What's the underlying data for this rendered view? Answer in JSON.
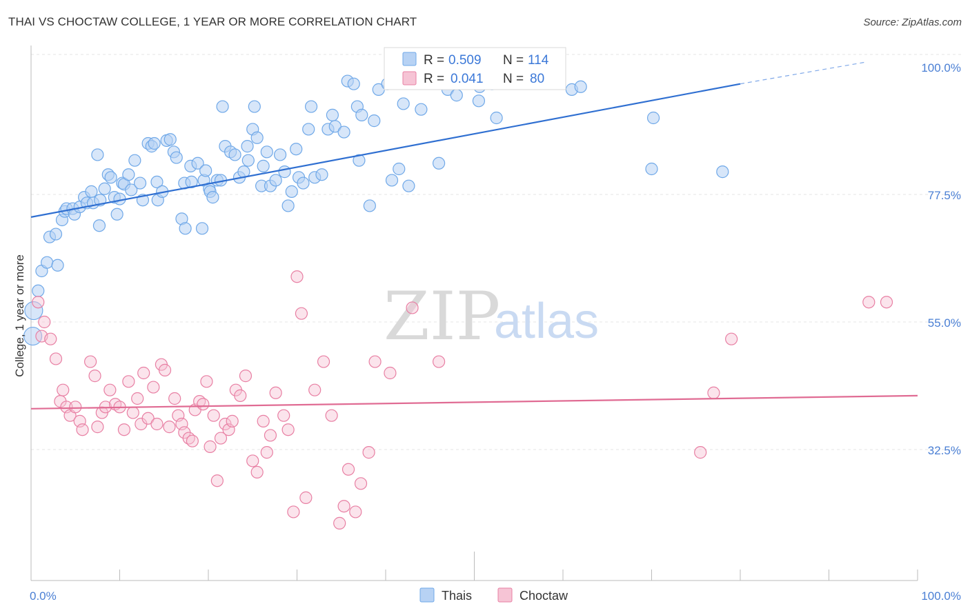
{
  "title": "THAI VS CHOCTAW COLLEGE, 1 YEAR OR MORE CORRELATION CHART",
  "source": "Source: ZipAtlas.com",
  "watermark": {
    "zip": "ZIP",
    "atlas": "atlas"
  },
  "legend": {
    "r_label": "R =",
    "n_label": "N =",
    "series": [
      {
        "name": "Thais",
        "r": "0.509",
        "n": "114",
        "color": "#6fa8e8",
        "fill": "#b7d2f4"
      },
      {
        "name": "Choctaw",
        "r": "0.041",
        "n": "80",
        "color": "#e87fa3",
        "fill": "#f6c4d5"
      }
    ]
  },
  "chart_data": {
    "type": "scatter",
    "title": "THAI VS CHOCTAW COLLEGE, 1 YEAR OR MORE CORRELATION CHART",
    "xlabel": "",
    "ylabel": "College, 1 year or more",
    "xlim": [
      0,
      100
    ],
    "ylim": [
      10,
      102
    ],
    "x_tick_labels": [
      "0.0%",
      "100.0%"
    ],
    "y_ticks": [
      32.5,
      55.0,
      77.5,
      100.0
    ],
    "y_tick_labels": [
      "32.5%",
      "55.0%",
      "77.5%",
      "100.0%"
    ],
    "grid": true,
    "legend_position": "top-center",
    "series": [
      {
        "name": "Thais",
        "color": "#3b78d8",
        "trend": {
          "x0": 0,
          "y0": 73.5,
          "x1": 80,
          "y1": 97.0,
          "dash_to_x": 94,
          "dash_to_y": 100.8
        },
        "points": [
          [
            0.2,
            52.5
          ],
          [
            0.3,
            57
          ],
          [
            0.8,
            60.5
          ],
          [
            1.2,
            64
          ],
          [
            1.8,
            65.5
          ],
          [
            2.1,
            70
          ],
          [
            2.8,
            70.5
          ],
          [
            3,
            65
          ],
          [
            3.5,
            73
          ],
          [
            3.8,
            74.5
          ],
          [
            4,
            75
          ],
          [
            4.7,
            75
          ],
          [
            4.9,
            74
          ],
          [
            5.5,
            75.3
          ],
          [
            6,
            77
          ],
          [
            6.3,
            76
          ],
          [
            6.8,
            78
          ],
          [
            7,
            76
          ],
          [
            7.8,
            76.5
          ],
          [
            7.5,
            84.5
          ],
          [
            7.7,
            72
          ],
          [
            8.3,
            78.5
          ],
          [
            8.7,
            81
          ],
          [
            9,
            80.5
          ],
          [
            9.4,
            77
          ],
          [
            9.7,
            74
          ],
          [
            10,
            76.7
          ],
          [
            10.3,
            79.5
          ],
          [
            10.5,
            79.3
          ],
          [
            11,
            81
          ],
          [
            11.3,
            78.3
          ],
          [
            11.7,
            83.5
          ],
          [
            12.3,
            79.5
          ],
          [
            12.6,
            76.5
          ],
          [
            13.2,
            86.5
          ],
          [
            13.6,
            86
          ],
          [
            13.9,
            86.5
          ],
          [
            14.2,
            79.7
          ],
          [
            14.3,
            76.5
          ],
          [
            14.8,
            78
          ],
          [
            15.3,
            87
          ],
          [
            15.7,
            87.2
          ],
          [
            16.1,
            85
          ],
          [
            16.4,
            84
          ],
          [
            17,
            73.2
          ],
          [
            17.4,
            71.5
          ],
          [
            17.3,
            79.5
          ],
          [
            18,
            82.5
          ],
          [
            18.1,
            79.7
          ],
          [
            18.8,
            83
          ],
          [
            19.3,
            71.5
          ],
          [
            19.5,
            80
          ],
          [
            19.7,
            81.7
          ],
          [
            20.1,
            78.5
          ],
          [
            20.2,
            78
          ],
          [
            20.5,
            77
          ],
          [
            21,
            80
          ],
          [
            21.4,
            80
          ],
          [
            21.9,
            86
          ],
          [
            21.6,
            93
          ],
          [
            22.5,
            85
          ],
          [
            23,
            84.5
          ],
          [
            23.5,
            80.5
          ],
          [
            24,
            81.5
          ],
          [
            24.4,
            86
          ],
          [
            24.5,
            83.5
          ],
          [
            25,
            89
          ],
          [
            25.2,
            93
          ],
          [
            25.5,
            87.5
          ],
          [
            26,
            79
          ],
          [
            26.2,
            82.5
          ],
          [
            26.6,
            85
          ],
          [
            27,
            79
          ],
          [
            27.6,
            80
          ],
          [
            28.1,
            84.5
          ],
          [
            28.6,
            81.5
          ],
          [
            29,
            75.5
          ],
          [
            29.4,
            78
          ],
          [
            29.9,
            85.5
          ],
          [
            30.2,
            80.5
          ],
          [
            30.7,
            79.5
          ],
          [
            31.3,
            89
          ],
          [
            31.6,
            93
          ],
          [
            32,
            80.5
          ],
          [
            32.8,
            81
          ],
          [
            33.5,
            89
          ],
          [
            34,
            91.5
          ],
          [
            34.3,
            89.5
          ],
          [
            35.3,
            88.5
          ],
          [
            35.7,
            97.5
          ],
          [
            36.4,
            97
          ],
          [
            36.8,
            93
          ],
          [
            37,
            83.5
          ],
          [
            37.3,
            91.5
          ],
          [
            38.2,
            75.5
          ],
          [
            38.7,
            90.5
          ],
          [
            39.2,
            96
          ],
          [
            40.2,
            97
          ],
          [
            40.7,
            80
          ],
          [
            41.5,
            82
          ],
          [
            42,
            93.5
          ],
          [
            42.6,
            79
          ],
          [
            43.5,
            97.5
          ],
          [
            44,
            92.5
          ],
          [
            46,
            83
          ],
          [
            47,
            96
          ],
          [
            48,
            95
          ],
          [
            50.5,
            94
          ],
          [
            50.6,
            96.5
          ],
          [
            52,
            97
          ],
          [
            52.5,
            91
          ],
          [
            54.5,
            99
          ],
          [
            61,
            96
          ],
          [
            62,
            96.5
          ],
          [
            70,
            82
          ],
          [
            70.2,
            91
          ],
          [
            78,
            81.5
          ]
        ]
      },
      {
        "name": "Choctaw",
        "color": "#e8739a",
        "trend": {
          "x0": 0,
          "y0": 39.7,
          "x1": 100,
          "y1": 42.0
        },
        "points": [
          [
            0.8,
            58.5
          ],
          [
            1.2,
            52.5
          ],
          [
            1.5,
            55
          ],
          [
            2.2,
            52
          ],
          [
            2.8,
            48.5
          ],
          [
            3.3,
            41
          ],
          [
            3.6,
            43
          ],
          [
            4,
            40
          ],
          [
            4.4,
            38.5
          ],
          [
            5,
            40
          ],
          [
            5.5,
            37.5
          ],
          [
            5.8,
            36
          ],
          [
            6.7,
            48
          ],
          [
            7.2,
            45.5
          ],
          [
            7.5,
            36.5
          ],
          [
            8,
            39
          ],
          [
            8.4,
            40
          ],
          [
            8.9,
            43
          ],
          [
            9.5,
            40.5
          ],
          [
            10,
            40
          ],
          [
            10.5,
            36
          ],
          [
            11,
            44.5
          ],
          [
            11.5,
            39
          ],
          [
            12,
            41.5
          ],
          [
            12.4,
            37
          ],
          [
            12.7,
            46
          ],
          [
            13.2,
            38
          ],
          [
            13.8,
            43.5
          ],
          [
            14.2,
            37
          ],
          [
            14.7,
            47.5
          ],
          [
            15.1,
            46.5
          ],
          [
            15.6,
            36.5
          ],
          [
            16.2,
            41.5
          ],
          [
            16.6,
            38.5
          ],
          [
            17,
            37
          ],
          [
            17.3,
            35.5
          ],
          [
            17.8,
            34.5
          ],
          [
            18.2,
            34
          ],
          [
            18.5,
            39.5
          ],
          [
            19,
            41
          ],
          [
            19.4,
            40.5
          ],
          [
            19.8,
            44.5
          ],
          [
            20.2,
            33
          ],
          [
            20.6,
            38.5
          ],
          [
            21,
            27
          ],
          [
            21.4,
            34.5
          ],
          [
            21.9,
            37
          ],
          [
            22.3,
            36
          ],
          [
            22.7,
            37.5
          ],
          [
            23.1,
            43
          ],
          [
            23.6,
            42
          ],
          [
            24.2,
            45.5
          ],
          [
            25,
            30.5
          ],
          [
            25.5,
            28.5
          ],
          [
            26.2,
            37.5
          ],
          [
            26.6,
            32
          ],
          [
            27,
            35
          ],
          [
            27.6,
            42.5
          ],
          [
            28.5,
            38.5
          ],
          [
            29,
            36
          ],
          [
            29.6,
            21.5
          ],
          [
            30,
            63
          ],
          [
            30.5,
            56.5
          ],
          [
            31,
            24
          ],
          [
            32,
            43
          ],
          [
            33,
            48
          ],
          [
            33.9,
            38.5
          ],
          [
            34.8,
            19.5
          ],
          [
            35.3,
            22.5
          ],
          [
            35.8,
            29
          ],
          [
            36.6,
            21.5
          ],
          [
            37.2,
            26.5
          ],
          [
            38.1,
            32
          ],
          [
            38.8,
            48
          ],
          [
            40.5,
            46
          ],
          [
            43,
            57.5
          ],
          [
            46,
            48
          ],
          [
            77,
            42.5
          ],
          [
            79,
            52
          ],
          [
            94.5,
            58.5
          ],
          [
            96.5,
            58.5
          ],
          [
            75.5,
            32
          ]
        ]
      }
    ]
  }
}
